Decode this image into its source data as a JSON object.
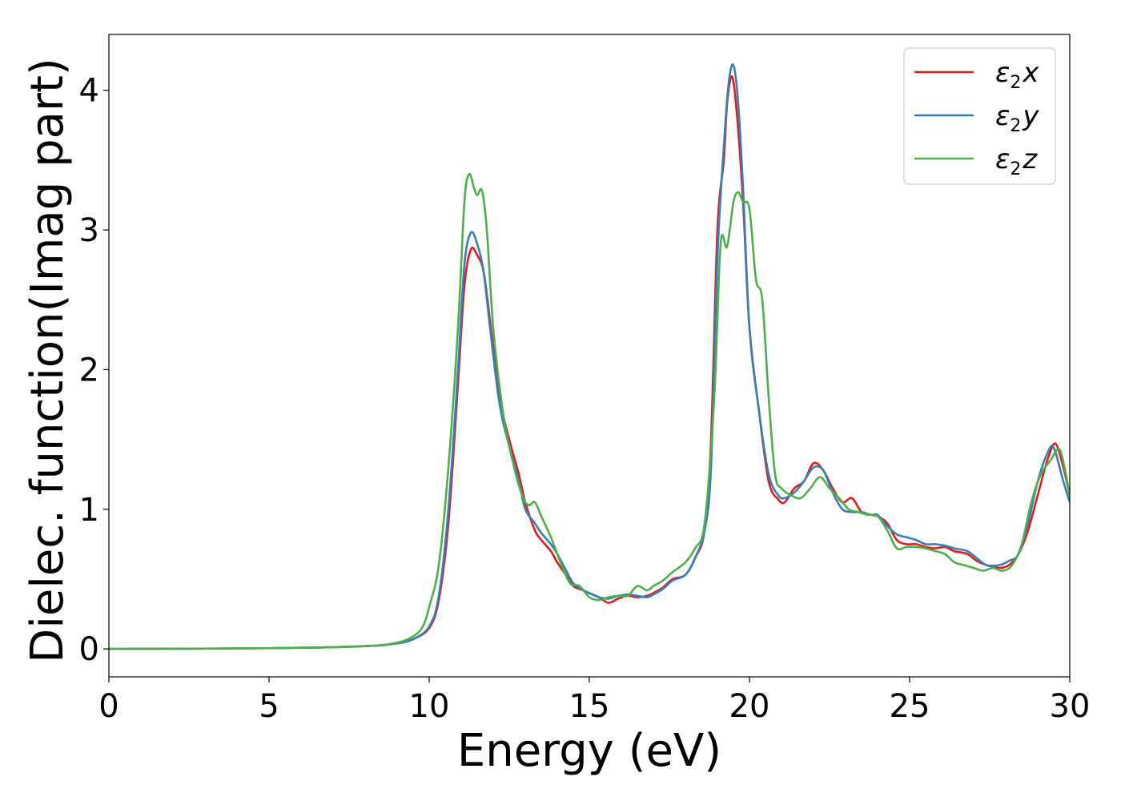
{
  "chart_data": {
    "type": "line",
    "xlabel": "Energy (eV)",
    "ylabel": "Dielec. function(Imag part)",
    "xlim": [
      0,
      30
    ],
    "ylim": [
      -0.2,
      4.4
    ],
    "x_ticks": [
      "0",
      "5",
      "10",
      "15",
      "20",
      "25",
      "30"
    ],
    "y_ticks": [
      "0",
      "1",
      "2",
      "3",
      "4"
    ],
    "grid": false,
    "legend_position": "top-right",
    "series": [
      {
        "name": "ε2x",
        "legend_base": "ε",
        "legend_sub": "2",
        "legend_var": "x",
        "color": "#e41a1c",
        "points": [
          [
            0,
            0
          ],
          [
            5,
            0.005
          ],
          [
            8,
            0.02
          ],
          [
            9,
            0.04
          ],
          [
            9.5,
            0.07
          ],
          [
            10,
            0.15
          ],
          [
            10.3,
            0.35
          ],
          [
            10.6,
            0.9
          ],
          [
            10.9,
            1.9
          ],
          [
            11.1,
            2.6
          ],
          [
            11.3,
            2.86
          ],
          [
            11.5,
            2.82
          ],
          [
            11.7,
            2.7
          ],
          [
            11.9,
            2.35
          ],
          [
            12.2,
            1.8
          ],
          [
            12.5,
            1.5
          ],
          [
            12.8,
            1.25
          ],
          [
            13.0,
            1.05
          ],
          [
            13.3,
            0.85
          ],
          [
            13.5,
            0.78
          ],
          [
            13.8,
            0.7
          ],
          [
            14.0,
            0.62
          ],
          [
            14.3,
            0.52
          ],
          [
            14.5,
            0.45
          ],
          [
            14.8,
            0.42
          ],
          [
            15.0,
            0.4
          ],
          [
            15.3,
            0.37
          ],
          [
            15.6,
            0.33
          ],
          [
            15.9,
            0.36
          ],
          [
            16.2,
            0.38
          ],
          [
            16.5,
            0.37
          ],
          [
            16.8,
            0.38
          ],
          [
            17.0,
            0.4
          ],
          [
            17.3,
            0.44
          ],
          [
            17.6,
            0.5
          ],
          [
            18.0,
            0.53
          ],
          [
            18.3,
            0.65
          ],
          [
            18.6,
            0.85
          ],
          [
            18.8,
            1.5
          ],
          [
            19.0,
            3.0
          ],
          [
            19.2,
            3.5
          ],
          [
            19.3,
            3.9
          ],
          [
            19.45,
            4.1
          ],
          [
            19.6,
            3.85
          ],
          [
            19.8,
            3.2
          ],
          [
            20.0,
            2.3
          ],
          [
            20.3,
            1.7
          ],
          [
            20.6,
            1.2
          ],
          [
            20.9,
            1.07
          ],
          [
            21.1,
            1.05
          ],
          [
            21.4,
            1.15
          ],
          [
            21.7,
            1.2
          ],
          [
            22.0,
            1.33
          ],
          [
            22.3,
            1.28
          ],
          [
            22.6,
            1.15
          ],
          [
            22.9,
            1.05
          ],
          [
            23.2,
            1.08
          ],
          [
            23.5,
            0.98
          ],
          [
            23.8,
            0.96
          ],
          [
            24.0,
            0.95
          ],
          [
            24.3,
            0.9
          ],
          [
            24.6,
            0.78
          ],
          [
            24.9,
            0.75
          ],
          [
            25.2,
            0.75
          ],
          [
            25.5,
            0.73
          ],
          [
            25.8,
            0.72
          ],
          [
            26.1,
            0.73
          ],
          [
            26.4,
            0.7
          ],
          [
            26.8,
            0.68
          ],
          [
            27.1,
            0.63
          ],
          [
            27.4,
            0.6
          ],
          [
            27.8,
            0.58
          ],
          [
            28.1,
            0.6
          ],
          [
            28.4,
            0.68
          ],
          [
            28.7,
            0.85
          ],
          [
            29.0,
            1.1
          ],
          [
            29.3,
            1.35
          ],
          [
            29.55,
            1.47
          ],
          [
            29.8,
            1.3
          ],
          [
            30.0,
            1.1
          ]
        ]
      },
      {
        "name": "ε2y",
        "legend_base": "ε",
        "legend_sub": "2",
        "legend_var": "y",
        "color": "#377eb8",
        "points": [
          [
            0,
            0
          ],
          [
            5,
            0.005
          ],
          [
            8,
            0.02
          ],
          [
            9,
            0.04
          ],
          [
            9.5,
            0.07
          ],
          [
            10,
            0.16
          ],
          [
            10.3,
            0.38
          ],
          [
            10.6,
            1.0
          ],
          [
            10.9,
            2.0
          ],
          [
            11.1,
            2.75
          ],
          [
            11.3,
            2.98
          ],
          [
            11.5,
            2.9
          ],
          [
            11.7,
            2.7
          ],
          [
            11.9,
            2.3
          ],
          [
            12.2,
            1.75
          ],
          [
            12.5,
            1.45
          ],
          [
            12.8,
            1.2
          ],
          [
            13.0,
            1.0
          ],
          [
            13.3,
            0.9
          ],
          [
            13.5,
            0.83
          ],
          [
            13.8,
            0.75
          ],
          [
            14.0,
            0.68
          ],
          [
            14.3,
            0.55
          ],
          [
            14.5,
            0.47
          ],
          [
            14.8,
            0.42
          ],
          [
            15.0,
            0.4
          ],
          [
            15.3,
            0.37
          ],
          [
            15.6,
            0.36
          ],
          [
            15.9,
            0.38
          ],
          [
            16.2,
            0.39
          ],
          [
            16.5,
            0.38
          ],
          [
            16.8,
            0.37
          ],
          [
            17.0,
            0.39
          ],
          [
            17.3,
            0.43
          ],
          [
            17.6,
            0.49
          ],
          [
            18.0,
            0.53
          ],
          [
            18.3,
            0.65
          ],
          [
            18.6,
            0.85
          ],
          [
            18.8,
            1.3
          ],
          [
            19.0,
            2.8
          ],
          [
            19.2,
            3.6
          ],
          [
            19.35,
            4.05
          ],
          [
            19.5,
            4.18
          ],
          [
            19.65,
            3.9
          ],
          [
            19.8,
            3.3
          ],
          [
            20.0,
            2.3
          ],
          [
            20.3,
            1.7
          ],
          [
            20.6,
            1.25
          ],
          [
            20.9,
            1.1
          ],
          [
            21.1,
            1.08
          ],
          [
            21.4,
            1.12
          ],
          [
            21.7,
            1.2
          ],
          [
            22.0,
            1.3
          ],
          [
            22.3,
            1.28
          ],
          [
            22.6,
            1.12
          ],
          [
            22.9,
            1.0
          ],
          [
            23.2,
            0.98
          ],
          [
            23.5,
            0.98
          ],
          [
            23.8,
            0.96
          ],
          [
            24.0,
            0.96
          ],
          [
            24.3,
            0.88
          ],
          [
            24.6,
            0.82
          ],
          [
            24.9,
            0.8
          ],
          [
            25.2,
            0.78
          ],
          [
            25.5,
            0.75
          ],
          [
            25.8,
            0.75
          ],
          [
            26.1,
            0.74
          ],
          [
            26.4,
            0.72
          ],
          [
            26.8,
            0.7
          ],
          [
            27.1,
            0.65
          ],
          [
            27.4,
            0.6
          ],
          [
            27.8,
            0.6
          ],
          [
            28.1,
            0.63
          ],
          [
            28.4,
            0.68
          ],
          [
            28.7,
            0.9
          ],
          [
            29.0,
            1.2
          ],
          [
            29.3,
            1.4
          ],
          [
            29.5,
            1.44
          ],
          [
            29.8,
            1.2
          ],
          [
            30.0,
            1.05
          ]
        ]
      },
      {
        "name": "ε2z",
        "legend_base": "ε",
        "legend_sub": "2",
        "legend_var": "z",
        "color": "#4daf4a",
        "points": [
          [
            0,
            0
          ],
          [
            5,
            0.005
          ],
          [
            8,
            0.02
          ],
          [
            9,
            0.045
          ],
          [
            9.5,
            0.09
          ],
          [
            9.8,
            0.16
          ],
          [
            10.0,
            0.3
          ],
          [
            10.3,
            0.6
          ],
          [
            10.6,
            1.3
          ],
          [
            10.9,
            2.3
          ],
          [
            11.1,
            3.2
          ],
          [
            11.25,
            3.4
          ],
          [
            11.4,
            3.3
          ],
          [
            11.5,
            3.25
          ],
          [
            11.65,
            3.28
          ],
          [
            11.8,
            3.0
          ],
          [
            12.0,
            2.3
          ],
          [
            12.3,
            1.7
          ],
          [
            12.6,
            1.35
          ],
          [
            12.9,
            1.1
          ],
          [
            13.1,
            1.03
          ],
          [
            13.3,
            1.05
          ],
          [
            13.5,
            0.95
          ],
          [
            13.8,
            0.8
          ],
          [
            14.1,
            0.62
          ],
          [
            14.4,
            0.47
          ],
          [
            14.7,
            0.45
          ],
          [
            15.0,
            0.37
          ],
          [
            15.3,
            0.35
          ],
          [
            15.6,
            0.37
          ],
          [
            15.9,
            0.38
          ],
          [
            16.2,
            0.38
          ],
          [
            16.5,
            0.45
          ],
          [
            16.8,
            0.42
          ],
          [
            17.0,
            0.45
          ],
          [
            17.3,
            0.49
          ],
          [
            17.6,
            0.55
          ],
          [
            18.0,
            0.62
          ],
          [
            18.3,
            0.72
          ],
          [
            18.6,
            0.9
          ],
          [
            18.9,
            1.8
          ],
          [
            19.1,
            2.9
          ],
          [
            19.3,
            2.88
          ],
          [
            19.5,
            3.2
          ],
          [
            19.65,
            3.27
          ],
          [
            19.8,
            3.2
          ],
          [
            20.0,
            3.15
          ],
          [
            20.2,
            2.65
          ],
          [
            20.4,
            2.5
          ],
          [
            20.6,
            1.8
          ],
          [
            20.8,
            1.25
          ],
          [
            21.0,
            1.15
          ],
          [
            21.3,
            1.1
          ],
          [
            21.6,
            1.08
          ],
          [
            21.9,
            1.15
          ],
          [
            22.2,
            1.23
          ],
          [
            22.5,
            1.15
          ],
          [
            22.8,
            1.08
          ],
          [
            23.1,
            1.0
          ],
          [
            23.4,
            0.98
          ],
          [
            23.7,
            0.96
          ],
          [
            24.0,
            0.95
          ],
          [
            24.3,
            0.85
          ],
          [
            24.6,
            0.72
          ],
          [
            24.9,
            0.73
          ],
          [
            25.2,
            0.73
          ],
          [
            25.5,
            0.72
          ],
          [
            25.8,
            0.7
          ],
          [
            26.1,
            0.68
          ],
          [
            26.4,
            0.62
          ],
          [
            26.7,
            0.6
          ],
          [
            27.0,
            0.58
          ],
          [
            27.3,
            0.56
          ],
          [
            27.6,
            0.58
          ],
          [
            27.9,
            0.56
          ],
          [
            28.2,
            0.6
          ],
          [
            28.5,
            0.75
          ],
          [
            28.8,
            1.05
          ],
          [
            29.1,
            1.25
          ],
          [
            29.4,
            1.35
          ],
          [
            29.7,
            1.42
          ],
          [
            30.0,
            1.1
          ]
        ]
      }
    ]
  }
}
